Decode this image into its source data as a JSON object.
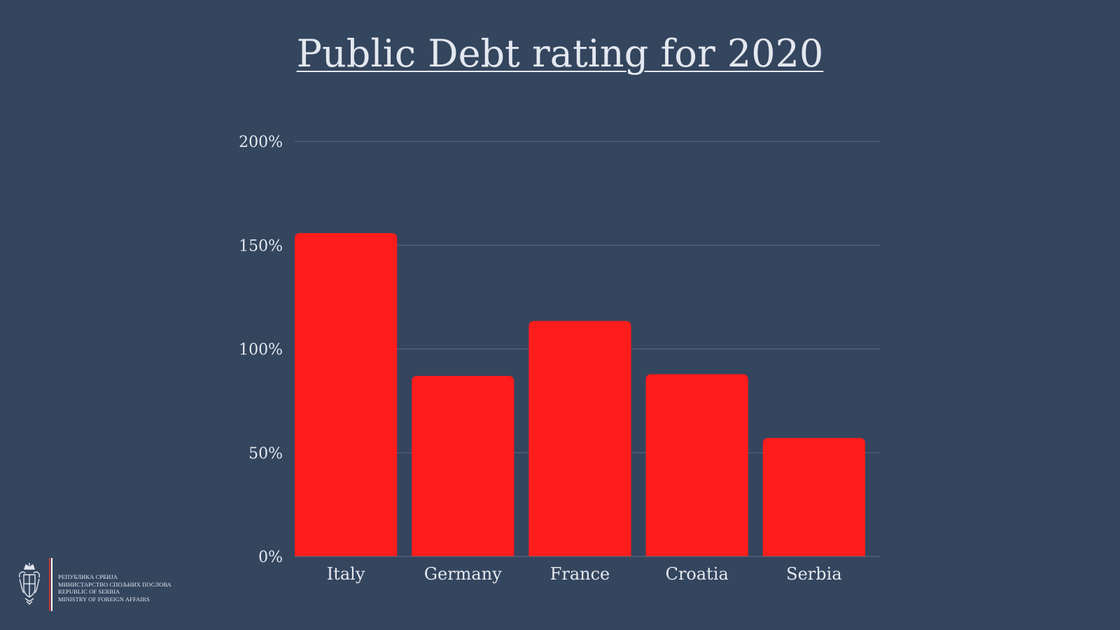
{
  "slide": {
    "title": "Public Debt rating for 2020"
  },
  "footer": {
    "logo_icon": "serbian-coat-of-arms-icon",
    "lines": [
      "РЕПУБЛИКА СРБИЈА",
      "МИНИСТАРСТВО СПОЉНИХ ПОСЛОВА",
      "REPUBLIC OF SERBIA",
      "MINISTRY OF FOREIGN AFFAIRS"
    ],
    "divider_colors": [
      "#c6363c",
      "#ffffff"
    ]
  },
  "chart_data": {
    "type": "bar",
    "title": "Public Debt rating for 2020",
    "xlabel": "",
    "ylabel": "",
    "categories": [
      "Italy",
      "Germany",
      "France",
      "Croatia",
      "Serbia"
    ],
    "values": [
      155.8,
      87.0,
      113.5,
      87.8,
      57.1
    ],
    "ylim": [
      0,
      200
    ],
    "yticks": [
      0,
      50,
      100,
      150,
      200
    ],
    "ytick_labels": [
      "0%",
      "50%",
      "100%",
      "150%",
      "200%"
    ],
    "grid": true,
    "legend": "none",
    "colors": {
      "bar": "#ff1c1c",
      "background": "#34455e",
      "grid": "#5b6b82",
      "text": "#e4e8ef"
    }
  }
}
